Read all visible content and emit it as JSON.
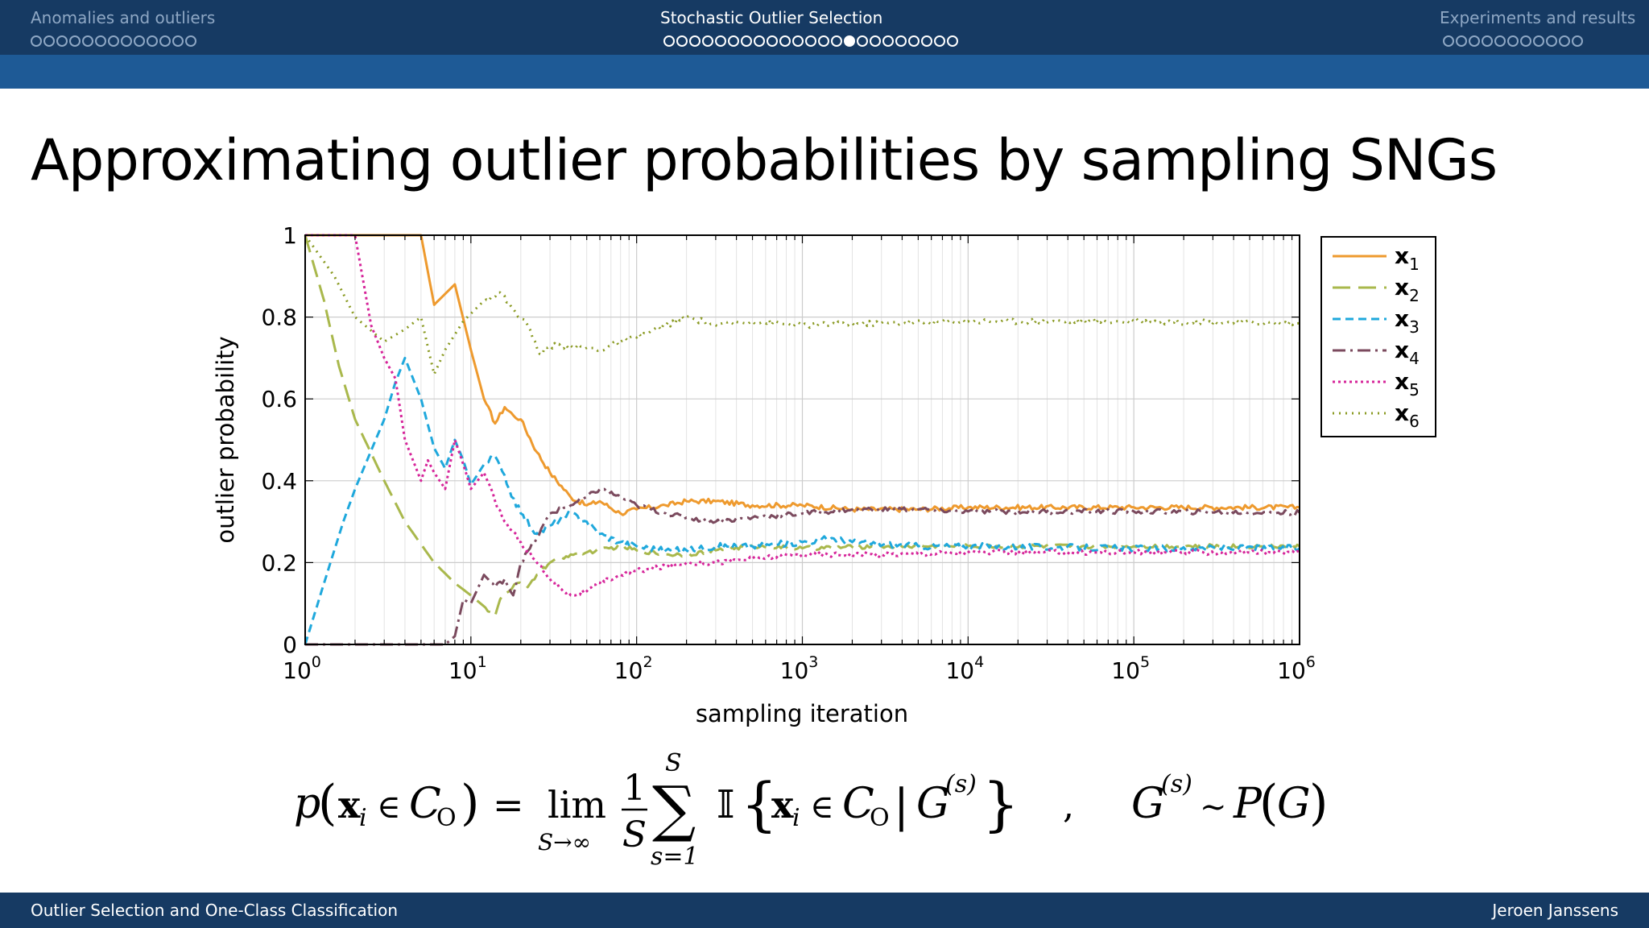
{
  "nav": {
    "sections": [
      {
        "title": "Anomalies and outliers",
        "dots": 13,
        "filled": -1,
        "current": false
      },
      {
        "title": "Stochastic Outlier Selection",
        "dots": 23,
        "filled": 14,
        "current": true
      },
      {
        "title": "Experiments and results",
        "dots": 11,
        "filled": -1,
        "current": false
      }
    ]
  },
  "slide": {
    "title": "Approximating outlier probabilities by sampling SNGs"
  },
  "colors": {
    "header_dark": "#163a63",
    "header_band": "#1e5a96"
  },
  "chart_data": {
    "type": "line",
    "xscale": "log",
    "xlim": [
      1,
      1000000
    ],
    "ylim": [
      0,
      1
    ],
    "xlabel": "sampling iteration",
    "ylabel": "outlier probability",
    "xticks": [
      {
        "base": "10",
        "exp": "0"
      },
      {
        "base": "10",
        "exp": "1"
      },
      {
        "base": "10",
        "exp": "2"
      },
      {
        "base": "10",
        "exp": "3"
      },
      {
        "base": "10",
        "exp": "4"
      },
      {
        "base": "10",
        "exp": "5"
      },
      {
        "base": "10",
        "exp": "6"
      }
    ],
    "yticks": [
      "0",
      "0.2",
      "0.4",
      "0.6",
      "0.8",
      "1"
    ],
    "legend_position": "outside-right",
    "series": [
      {
        "name": "x",
        "sub": "1",
        "color": "#ee9a2e",
        "dash": "",
        "jitter": 0.006,
        "points": [
          [
            1,
            1
          ],
          [
            5,
            1
          ],
          [
            6,
            0.83
          ],
          [
            8,
            0.88
          ],
          [
            10,
            0.72
          ],
          [
            12,
            0.6
          ],
          [
            14,
            0.54
          ],
          [
            16,
            0.58
          ],
          [
            18,
            0.56
          ],
          [
            20,
            0.55
          ],
          [
            25,
            0.47
          ],
          [
            30,
            0.42
          ],
          [
            40,
            0.36
          ],
          [
            50,
            0.34
          ],
          [
            60,
            0.35
          ],
          [
            80,
            0.32
          ],
          [
            100,
            0.33
          ],
          [
            150,
            0.34
          ],
          [
            200,
            0.35
          ],
          [
            300,
            0.35
          ],
          [
            500,
            0.34
          ],
          [
            1000,
            0.34
          ],
          [
            2000,
            0.33
          ],
          [
            5000,
            0.33
          ],
          [
            10000,
            0.335
          ],
          [
            100000,
            0.335
          ],
          [
            1000000,
            0.335
          ]
        ]
      },
      {
        "name": "x",
        "sub": "2",
        "color": "#a9b84c",
        "dash": "22 10",
        "jitter": 0.005,
        "points": [
          [
            1,
            1
          ],
          [
            1.3,
            0.84
          ],
          [
            1.6,
            0.68
          ],
          [
            2,
            0.55
          ],
          [
            3,
            0.4
          ],
          [
            4,
            0.3
          ],
          [
            6,
            0.2
          ],
          [
            8,
            0.15
          ],
          [
            10,
            0.12
          ],
          [
            14,
            0.07
          ],
          [
            15,
            0.11
          ],
          [
            17,
            0.13
          ],
          [
            19,
            0.15
          ],
          [
            22,
            0.14
          ],
          [
            25,
            0.17
          ],
          [
            30,
            0.2
          ],
          [
            40,
            0.22
          ],
          [
            60,
            0.23
          ],
          [
            80,
            0.24
          ],
          [
            100,
            0.23
          ],
          [
            150,
            0.22
          ],
          [
            200,
            0.22
          ],
          [
            300,
            0.23
          ],
          [
            500,
            0.24
          ],
          [
            1000,
            0.235
          ],
          [
            3000,
            0.24
          ],
          [
            10000,
            0.24
          ],
          [
            100000,
            0.24
          ],
          [
            1000000,
            0.24
          ]
        ]
      },
      {
        "name": "x",
        "sub": "3",
        "color": "#1fa8dc",
        "dash": "10 6",
        "jitter": 0.008,
        "points": [
          [
            1,
            0
          ],
          [
            1.3,
            0.15
          ],
          [
            1.7,
            0.3
          ],
          [
            2,
            0.38
          ],
          [
            3,
            0.55
          ],
          [
            3.5,
            0.64
          ],
          [
            4,
            0.7
          ],
          [
            5,
            0.6
          ],
          [
            6,
            0.48
          ],
          [
            7,
            0.43
          ],
          [
            8,
            0.5
          ],
          [
            9,
            0.45
          ],
          [
            10,
            0.39
          ],
          [
            12,
            0.44
          ],
          [
            14,
            0.46
          ],
          [
            17,
            0.38
          ],
          [
            20,
            0.32
          ],
          [
            25,
            0.27
          ],
          [
            30,
            0.29
          ],
          [
            40,
            0.32
          ],
          [
            50,
            0.3
          ],
          [
            60,
            0.27
          ],
          [
            80,
            0.25
          ],
          [
            100,
            0.24
          ],
          [
            150,
            0.23
          ],
          [
            200,
            0.23
          ],
          [
            300,
            0.24
          ],
          [
            500,
            0.24
          ],
          [
            1000,
            0.25
          ],
          [
            1500,
            0.26
          ],
          [
            2000,
            0.25
          ],
          [
            5000,
            0.24
          ],
          [
            10000,
            0.24
          ],
          [
            100000,
            0.235
          ],
          [
            1000000,
            0.235
          ]
        ]
      },
      {
        "name": "x",
        "sub": "4",
        "color": "#7b4a5e",
        "dash": "16 6 3 6",
        "jitter": 0.006,
        "points": [
          [
            1,
            0
          ],
          [
            7,
            0
          ],
          [
            8,
            0.02
          ],
          [
            9,
            0.11
          ],
          [
            10,
            0.1
          ],
          [
            12,
            0.17
          ],
          [
            14,
            0.14
          ],
          [
            16,
            0.16
          ],
          [
            18,
            0.12
          ],
          [
            20,
            0.2
          ],
          [
            25,
            0.26
          ],
          [
            30,
            0.32
          ],
          [
            40,
            0.34
          ],
          [
            50,
            0.36
          ],
          [
            60,
            0.38
          ],
          [
            80,
            0.36
          ],
          [
            100,
            0.34
          ],
          [
            150,
            0.32
          ],
          [
            200,
            0.31
          ],
          [
            300,
            0.3
          ],
          [
            500,
            0.31
          ],
          [
            1000,
            0.32
          ],
          [
            2000,
            0.33
          ],
          [
            5000,
            0.33
          ],
          [
            10000,
            0.325
          ],
          [
            100000,
            0.325
          ],
          [
            1000000,
            0.322
          ]
        ]
      },
      {
        "name": "x",
        "sub": "5",
        "color": "#d6259a",
        "dash": "3 4",
        "jitter": 0.006,
        "points": [
          [
            1,
            1
          ],
          [
            2,
            1
          ],
          [
            2.5,
            0.78
          ],
          [
            3,
            0.7
          ],
          [
            3.5,
            0.65
          ],
          [
            4,
            0.5
          ],
          [
            5,
            0.4
          ],
          [
            5.5,
            0.45
          ],
          [
            6,
            0.42
          ],
          [
            7,
            0.38
          ],
          [
            8,
            0.5
          ],
          [
            9,
            0.44
          ],
          [
            10,
            0.38
          ],
          [
            12,
            0.42
          ],
          [
            14,
            0.35
          ],
          [
            16,
            0.3
          ],
          [
            20,
            0.25
          ],
          [
            25,
            0.2
          ],
          [
            30,
            0.16
          ],
          [
            40,
            0.12
          ],
          [
            50,
            0.13
          ],
          [
            60,
            0.15
          ],
          [
            80,
            0.17
          ],
          [
            100,
            0.18
          ],
          [
            150,
            0.19
          ],
          [
            200,
            0.2
          ],
          [
            300,
            0.2
          ],
          [
            500,
            0.21
          ],
          [
            1000,
            0.22
          ],
          [
            3000,
            0.22
          ],
          [
            10000,
            0.225
          ],
          [
            100000,
            0.225
          ],
          [
            1000000,
            0.225
          ]
        ]
      },
      {
        "name": "x",
        "sub": "6",
        "color": "#8a9a22",
        "dash": "2 6",
        "jitter": 0.007,
        "points": [
          [
            1,
            1
          ],
          [
            1.5,
            0.9
          ],
          [
            2,
            0.8
          ],
          [
            3,
            0.74
          ],
          [
            4,
            0.77
          ],
          [
            5,
            0.8
          ],
          [
            6,
            0.66
          ],
          [
            7,
            0.72
          ],
          [
            9,
            0.79
          ],
          [
            12,
            0.84
          ],
          [
            15,
            0.86
          ],
          [
            18,
            0.82
          ],
          [
            22,
            0.78
          ],
          [
            26,
            0.71
          ],
          [
            30,
            0.73
          ],
          [
            40,
            0.73
          ],
          [
            60,
            0.72
          ],
          [
            80,
            0.74
          ],
          [
            100,
            0.75
          ],
          [
            150,
            0.78
          ],
          [
            200,
            0.8
          ],
          [
            300,
            0.78
          ],
          [
            500,
            0.79
          ],
          [
            1000,
            0.78
          ],
          [
            3000,
            0.785
          ],
          [
            10000,
            0.79
          ],
          [
            100000,
            0.79
          ],
          [
            1000000,
            0.785
          ]
        ]
      }
    ]
  },
  "formula": {
    "lhs_p": "p",
    "lhs_open": "(",
    "lhs_x": "x",
    "lhs_i": "i",
    "lhs_in": "∈",
    "lhs_C": "C",
    "lhs_O": "O",
    "lhs_close": ")",
    "eq": "=",
    "lim": "lim",
    "lim_sub": "S→∞",
    "frac_num": "1",
    "frac_den": "S",
    "sum_sym": "∑",
    "sum_top": "S",
    "sum_bottom": "s=1",
    "indicator": "𝕀",
    "brace_open": "{",
    "ind_x": "x",
    "ind_i": "i",
    "ind_in": "∈",
    "ind_C": "C",
    "ind_O": "O",
    "ind_bar": "|",
    "ind_G": "G",
    "ind_sup": "(s)",
    "brace_close": "}",
    "comma": ",",
    "rhs_G": "G",
    "rhs_sup": "(s)",
    "rhs_sim": "∼",
    "rhs_P": "P",
    "rhs_open": "(",
    "rhs_calG": "G",
    "rhs_close": ")"
  },
  "footer": {
    "left": "Outlier Selection and One-Class Classification",
    "right": "Jeroen Janssens"
  }
}
